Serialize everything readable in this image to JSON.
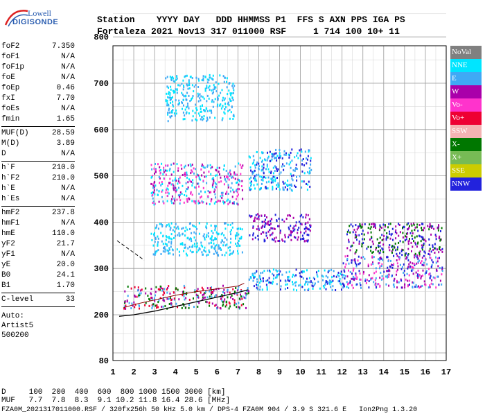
{
  "logo": {
    "line1": "Lowell",
    "line2": "DIGISONDE"
  },
  "header": {
    "labels": "Station    YYYY DAY   DDD HHMMSS P1  FFS S AXN PPS IGA PS",
    "values": "Fortaleza 2021 Nov13 317 011000 RSF     1 714 100 10+ 11"
  },
  "params": {
    "group1": [
      {
        "label": "foF2",
        "value": "7.350"
      },
      {
        "label": "foF1",
        "value": "N/A"
      },
      {
        "label": "foF1p",
        "value": "N/A"
      },
      {
        "label": "foE",
        "value": "N/A"
      },
      {
        "label": "foEp",
        "value": "0.46"
      },
      {
        "label": "fxI",
        "value": "7.70"
      },
      {
        "label": "foEs",
        "value": "N/A"
      },
      {
        "label": "fmin",
        "value": "1.65"
      }
    ],
    "group2": [
      {
        "label": "MUF(D)",
        "value": "28.59"
      },
      {
        "label": "M(D)",
        "value": "3.89"
      },
      {
        "label": "D",
        "value": "N/A"
      }
    ],
    "group3": [
      {
        "label": "h`F",
        "value": "210.0"
      },
      {
        "label": "h`F2",
        "value": "210.0"
      },
      {
        "label": "h`E",
        "value": "N/A"
      },
      {
        "label": "h`Es",
        "value": "N/A"
      }
    ],
    "group4": [
      {
        "label": "hmF2",
        "value": "237.8"
      },
      {
        "label": "hmF1",
        "value": "N/A"
      },
      {
        "label": "hmE",
        "value": "110.0"
      },
      {
        "label": "yF2",
        "value": "21.7"
      },
      {
        "label": "yF1",
        "value": "N/A"
      },
      {
        "label": "yE",
        "value": "20.0"
      },
      {
        "label": "B0",
        "value": "24.1"
      },
      {
        "label": "B1",
        "value": "1.70"
      }
    ],
    "group5": [
      {
        "label": "C-level",
        "value": "33"
      }
    ],
    "auto": [
      "Auto:",
      "Artist5",
      "500200"
    ]
  },
  "legend": [
    {
      "label": "NoVal",
      "color": "#808080"
    },
    {
      "label": "NNE",
      "color": "#00e5ff"
    },
    {
      "label": "E",
      "color": "#3fa9f5"
    },
    {
      "label": "W",
      "color": "#aa00aa"
    },
    {
      "label": "Vo-",
      "color": "#ff33cc"
    },
    {
      "label": "Vo+",
      "color": "#ee0033"
    },
    {
      "label": "SSW",
      "color": "#f4b3b3"
    },
    {
      "label": "X-",
      "color": "#007700"
    },
    {
      "label": "X+",
      "color": "#77bb55"
    },
    {
      "label": "SSE",
      "color": "#cccc00"
    },
    {
      "label": "NNW",
      "color": "#2222dd"
    }
  ],
  "muf_table": {
    "d_row": "D     100  200  400  600  800 1000 1500 3000 [km]",
    "muf_row": "MUF   7.7  7.8  8.3  9.1 10.2 11.8 16.4 28.6 [MHz]"
  },
  "footer": "FZA0M_2021317011000.RSF / 320fx256h 50 kHz 5.0 km / DPS-4 FZA0M 904 / 3.9 S 321.6 E   Ion2Png 1.3.20",
  "chart_data": {
    "type": "scatter",
    "title": "",
    "xlabel": "",
    "ylabel": "",
    "xlim": [
      1,
      17
    ],
    "ylim": [
      80,
      900
    ],
    "x_ticks": [
      "1",
      "2",
      "3",
      "4",
      "5",
      "6",
      "7",
      "8",
      "9",
      "10",
      "11",
      "12",
      "13",
      "14",
      "15",
      "16",
      "17"
    ],
    "y_ticks": [
      "80",
      "200",
      "300",
      "400",
      "500",
      "600",
      "700",
      "800",
      "900"
    ],
    "grid": true,
    "legend_position": "right",
    "series": [
      {
        "name": "NoVal",
        "color": "#808080"
      },
      {
        "name": "NNE",
        "color": "#00e5ff"
      },
      {
        "name": "E",
        "color": "#3fa9f5"
      },
      {
        "name": "W",
        "color": "#aa00aa"
      },
      {
        "name": "Vo-",
        "color": "#ff33cc"
      },
      {
        "name": "Vo+",
        "color": "#ee0033"
      },
      {
        "name": "SSW",
        "color": "#f4b3b3"
      },
      {
        "name": "X-",
        "color": "#007700"
      },
      {
        "name": "X+",
        "color": "#77bb55"
      },
      {
        "name": "SSE",
        "color": "#cccc00"
      },
      {
        "name": "NNW",
        "color": "#2222dd"
      }
    ],
    "echo_regions": [
      {
        "x": [
          1.5,
          7.5
        ],
        "y": [
          215,
          265
        ],
        "colors": [
          "Vo+",
          "W",
          "X-",
          "E"
        ]
      },
      {
        "x": [
          7.5,
          12.2
        ],
        "y": [
          255,
          300
        ],
        "colors": [
          "E",
          "NNW",
          "NNE"
        ]
      },
      {
        "x": [
          12.0,
          16.8
        ],
        "y": [
          260,
          330
        ],
        "colors": [
          "E",
          "NNW",
          "W",
          "Vo-"
        ]
      },
      {
        "x": [
          12.2,
          16.8
        ],
        "y": [
          330,
          400
        ],
        "colors": [
          "NNW",
          "W",
          "X-"
        ]
      },
      {
        "x": [
          2.8,
          7.2
        ],
        "y": [
          330,
          400
        ],
        "colors": [
          "E",
          "NNE"
        ]
      },
      {
        "x": [
          2.8,
          7.2
        ],
        "y": [
          440,
          530
        ],
        "colors": [
          "E",
          "NNE",
          "Vo-",
          "W"
        ]
      },
      {
        "x": [
          3.5,
          6.8
        ],
        "y": [
          620,
          720
        ],
        "colors": [
          "NNE",
          "E"
        ]
      },
      {
        "x": [
          7.5,
          10.5
        ],
        "y": [
          360,
          420
        ],
        "colors": [
          "NNW",
          "W"
        ]
      },
      {
        "x": [
          7.5,
          10.5
        ],
        "y": [
          470,
          560
        ],
        "colors": [
          "E",
          "NNE",
          "NNW"
        ]
      }
    ],
    "traces": [
      {
        "name": "profile",
        "x": [
          1.3,
          2,
          3,
          4,
          5,
          6,
          7,
          7.5
        ],
        "y": [
          196,
          200,
          208,
          218,
          228,
          238,
          248,
          254
        ]
      },
      {
        "name": "virtual height curve",
        "x": [
          1.5,
          2,
          3,
          4,
          5,
          6,
          7,
          7.3
        ],
        "y": [
          215,
          222,
          232,
          242,
          250,
          256,
          262,
          268
        ]
      },
      {
        "name": "dashed extension",
        "x": [
          1.2,
          2.5
        ],
        "y": [
          360,
          318
        ]
      }
    ]
  }
}
